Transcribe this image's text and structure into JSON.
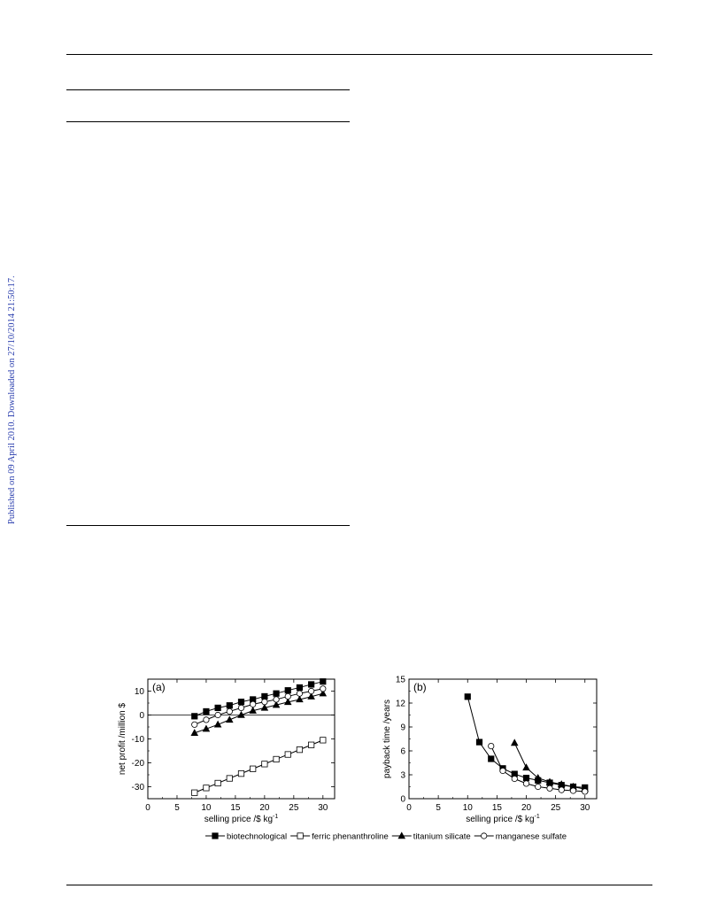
{
  "sidebar": {
    "text": "Published on 09 April 2010. Downloaded on 27/10/2014 21:50:17."
  },
  "legend": {
    "items": [
      {
        "label": "biotechnological",
        "marker": "square-filled"
      },
      {
        "label": "ferric phenanthroline",
        "marker": "square-open"
      },
      {
        "label": "titanium silicate",
        "marker": "triangle-filled"
      },
      {
        "label": "manganese sulfate",
        "marker": "circle-open"
      }
    ]
  },
  "chart_data": [
    {
      "type": "line",
      "panel_label": "(a)",
      "xlabel": "selling price /$ kg",
      "xlabel_sup": "-1",
      "ylabel": "net profit /million $",
      "xlim": [
        0,
        32
      ],
      "ylim": [
        -35,
        15
      ],
      "xticks": [
        0,
        5,
        10,
        15,
        20,
        25,
        30
      ],
      "yticks": [
        -30,
        -20,
        -10,
        0,
        10
      ],
      "zero_line": true,
      "series": [
        {
          "name": "biotechnological",
          "marker": "square-filled",
          "x": [
            8,
            10,
            12,
            14,
            16,
            18,
            20,
            22,
            24,
            26,
            28,
            30
          ],
          "y": [
            -0.5,
            1.5,
            3.0,
            4.0,
            5.5,
            6.5,
            7.8,
            9.0,
            10.3,
            11.5,
            12.8,
            14.0
          ]
        },
        {
          "name": "ferric phenanthroline",
          "marker": "square-open",
          "x": [
            8,
            10,
            12,
            14,
            16,
            18,
            20,
            22,
            24,
            26,
            28,
            30
          ],
          "y": [
            -32.5,
            -30.5,
            -28.5,
            -26.5,
            -24.5,
            -22.5,
            -20.5,
            -18.5,
            -16.5,
            -14.5,
            -12.5,
            -10.5
          ]
        },
        {
          "name": "titanium silicate",
          "marker": "triangle-filled",
          "x": [
            8,
            10,
            12,
            14,
            16,
            18,
            20,
            22,
            24,
            26,
            28,
            30
          ],
          "y": [
            -7.5,
            -5.8,
            -4.0,
            -2.0,
            0.0,
            1.8,
            3.0,
            4.2,
            5.4,
            6.5,
            7.7,
            9.0
          ]
        },
        {
          "name": "manganese sulfate",
          "marker": "circle-open",
          "x": [
            8,
            10,
            12,
            14,
            16,
            18,
            20,
            22,
            24,
            26,
            28,
            30
          ],
          "y": [
            -4.0,
            -2.0,
            0.0,
            1.5,
            3.0,
            4.5,
            5.5,
            6.5,
            7.8,
            9.0,
            10.0,
            11.0
          ]
        }
      ]
    },
    {
      "type": "line",
      "panel_label": "(b)",
      "xlabel": "selling price /$ kg",
      "xlabel_sup": "-1",
      "ylabel": "payback time /years",
      "xlim": [
        0,
        32
      ],
      "ylim": [
        0,
        15
      ],
      "xticks": [
        0,
        5,
        10,
        15,
        20,
        25,
        30
      ],
      "yticks": [
        0,
        3,
        6,
        9,
        12,
        15
      ],
      "zero_line": false,
      "series": [
        {
          "name": "biotechnological",
          "marker": "square-filled",
          "x": [
            10,
            12,
            14,
            16,
            18,
            20,
            22,
            24,
            26,
            28,
            30
          ],
          "y": [
            12.8,
            7.1,
            5.0,
            3.8,
            3.1,
            2.6,
            2.3,
            2.0,
            1.7,
            1.5,
            1.4
          ]
        },
        {
          "name": "ferric phenanthroline",
          "marker": "square-open",
          "x": [],
          "y": []
        },
        {
          "name": "titanium silicate",
          "marker": "triangle-filled",
          "x": [
            18,
            20,
            22,
            24,
            26,
            28,
            30
          ],
          "y": [
            7.0,
            3.9,
            2.6,
            2.1,
            1.8,
            1.5,
            1.2
          ]
        },
        {
          "name": "manganese sulfate",
          "marker": "circle-open",
          "x": [
            14,
            16,
            18,
            20,
            22,
            24,
            26,
            28,
            30
          ],
          "y": [
            6.6,
            3.5,
            2.5,
            1.9,
            1.5,
            1.3,
            1.1,
            1.0,
            0.9
          ]
        }
      ]
    }
  ]
}
